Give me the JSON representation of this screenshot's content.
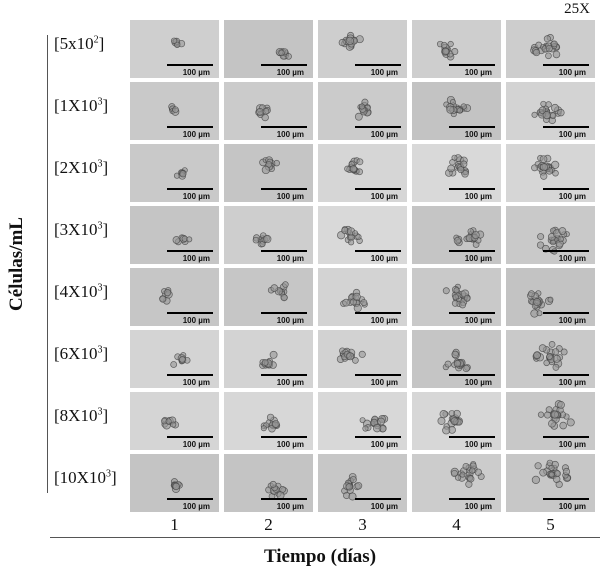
{
  "magnification": "25X",
  "y_axis_label": "Células/mL",
  "x_axis_label": "Tiempo (días)",
  "scale_bar_label": "100 µm",
  "rows": [
    {
      "base": "[5x10",
      "exp": "2",
      "close": "]"
    },
    {
      "base": "[1X10",
      "exp": "3",
      "close": "]"
    },
    {
      "base": "[2X10",
      "exp": "3",
      "close": "]"
    },
    {
      "base": "[3X10",
      "exp": "3",
      "close": "]"
    },
    {
      "base": "[4X10",
      "exp": "3",
      "close": "]"
    },
    {
      "base": "[6X10",
      "exp": "3",
      "close": "]"
    },
    {
      "base": "[8X10",
      "exp": "3",
      "close": "]"
    },
    {
      "base": "[10X10",
      "exp": "3",
      "close": "]"
    }
  ],
  "columns": [
    "1",
    "2",
    "3",
    "4",
    "5"
  ]
}
